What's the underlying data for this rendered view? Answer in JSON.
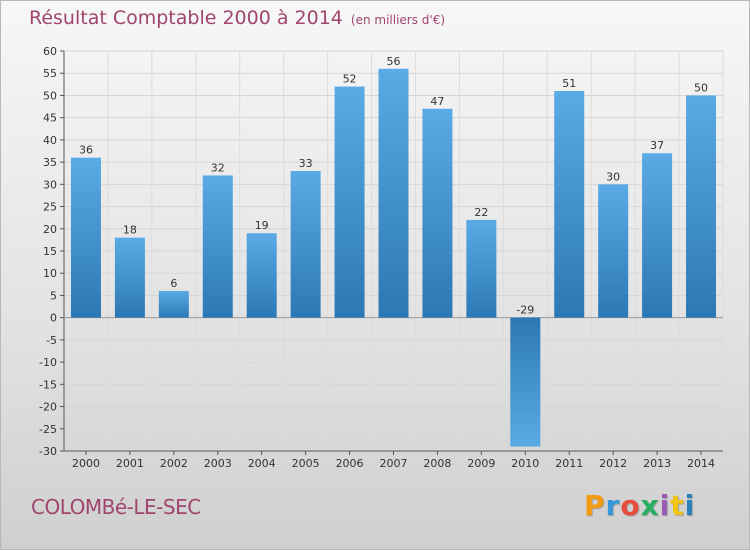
{
  "header": {
    "title": "Résultat Comptable 2000 à 2014",
    "unit": "(en milliers d'€)"
  },
  "city": "COLOMBé-LE-SEC",
  "logo": {
    "letters": [
      "P",
      "r",
      "o",
      "x",
      "i",
      "t",
      "i"
    ],
    "colors": [
      "#f39c12",
      "#3498db",
      "#e74c3c",
      "#27ae60",
      "#9b59b6",
      "#f1c40f",
      "#2980b9"
    ]
  },
  "chart_data": {
    "type": "bar",
    "title": "Résultat Comptable 2000 à 2014",
    "subtitle": "(en milliers d'€)",
    "categories": [
      "2000",
      "2001",
      "2002",
      "2003",
      "2004",
      "2005",
      "2006",
      "2007",
      "2008",
      "2009",
      "2010",
      "2011",
      "2012",
      "2013",
      "2014"
    ],
    "values": [
      36,
      18,
      6,
      32,
      19,
      33,
      52,
      56,
      47,
      22,
      -29,
      51,
      30,
      37,
      50
    ],
    "ylim": [
      -30,
      60
    ],
    "yticks": [
      60,
      55,
      50,
      45,
      40,
      35,
      30,
      25,
      20,
      15,
      10,
      5,
      0,
      -5,
      -10,
      -15,
      -20,
      -25,
      -30
    ],
    "grid": true,
    "bar_color_top": "#5aaae6",
    "bar_color_bottom": "#2c78b4"
  }
}
